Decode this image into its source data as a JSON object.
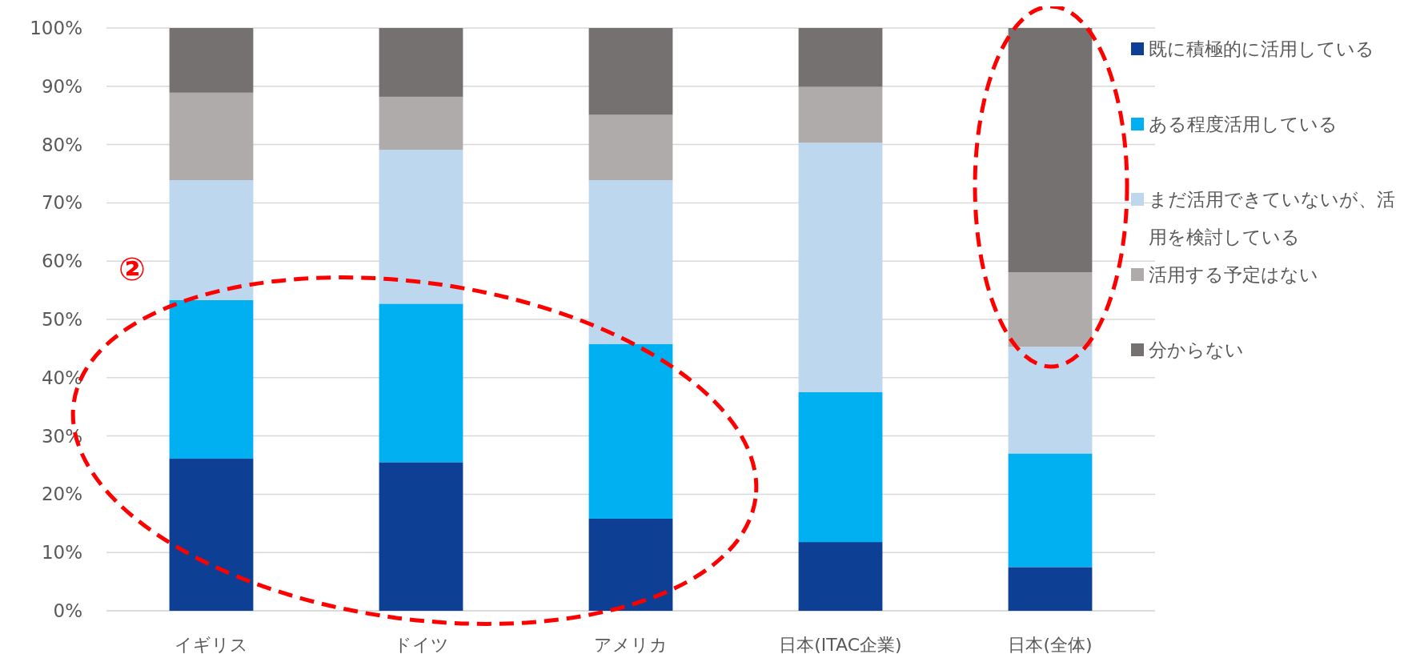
{
  "chart_data": {
    "type": "bar",
    "stacked": true,
    "categories": [
      "イギリス",
      "ドイツ",
      "アメリカ",
      "日本(ITAC企業)",
      "日本(全体)"
    ],
    "series": [
      {
        "name": "既に積極的に活用している",
        "color": "#0d3f94",
        "values": [
          26.1,
          25.5,
          15.8,
          11.8,
          7.5
        ]
      },
      {
        "name": "ある程度活用している",
        "color": "#00b0f0",
        "values": [
          27.2,
          27.2,
          30.0,
          25.7,
          19.5
        ]
      },
      {
        "name": "まだ活用できていないが、活用を検討している",
        "color": "#bdd7ee",
        "values": [
          20.6,
          26.4,
          28.1,
          42.8,
          18.3
        ]
      },
      {
        "name": "活用する予定はない",
        "color": "#afabab",
        "values": [
          15.0,
          9.1,
          11.2,
          9.6,
          12.8
        ]
      },
      {
        "name": "分からない",
        "color": "#767171",
        "values": [
          11.1,
          11.8,
          14.9,
          10.1,
          41.9
        ]
      }
    ],
    "ylim": [
      0,
      100
    ],
    "yticks": [
      {
        "value": 0,
        "label": "0%"
      },
      {
        "value": 10,
        "label": "10%"
      },
      {
        "value": 20,
        "label": "20%"
      },
      {
        "value": 30,
        "label": "30%"
      },
      {
        "value": 40,
        "label": "40%"
      },
      {
        "value": 50,
        "label": "50%"
      },
      {
        "value": 60,
        "label": "60%"
      },
      {
        "value": 70,
        "label": "70%"
      },
      {
        "value": 80,
        "label": "80%"
      },
      {
        "value": 90,
        "label": "90%"
      },
      {
        "value": 100,
        "label": "100%"
      }
    ],
    "grid": "y",
    "legend": "right",
    "annotations": [
      "②"
    ]
  }
}
